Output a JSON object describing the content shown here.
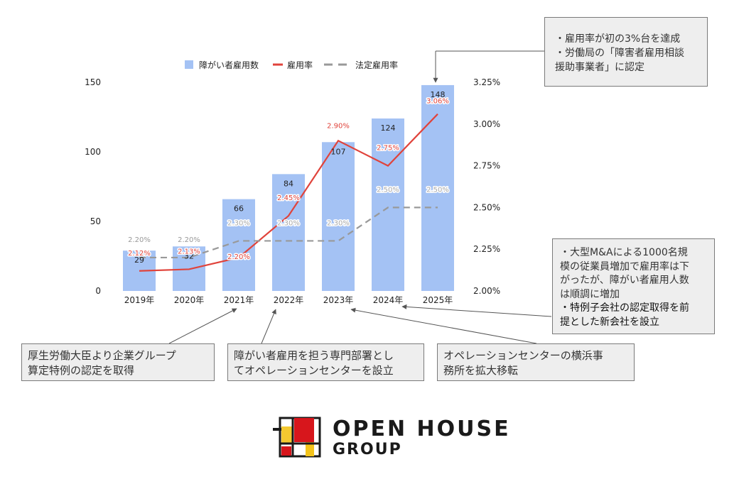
{
  "chart_data": {
    "type": "bar+line",
    "categories": [
      "2019年",
      "2020年",
      "2021年",
      "2022年",
      "2023年",
      "2024年",
      "2025年"
    ],
    "bar_series": {
      "name": "障がい者雇用数",
      "values": [
        29,
        32,
        66,
        84,
        107,
        124,
        148
      ],
      "color": "#a4c2f4"
    },
    "line_series": [
      {
        "name": "雇用率",
        "values": [
          2.12,
          2.13,
          2.2,
          2.45,
          2.9,
          2.75,
          3.06
        ],
        "labels": [
          "2.12%",
          "2.13%",
          "2.20%",
          "2.45%",
          "2.90%",
          "2.75%",
          "3.06%"
        ],
        "color": "#e0433b",
        "style": "solid"
      },
      {
        "name": "法定雇用率",
        "values": [
          2.2,
          2.2,
          2.3,
          2.3,
          2.3,
          2.5,
          2.5
        ],
        "labels": [
          "2.20%",
          "2.20%",
          "2.30%",
          "2.30%",
          "2.30%",
          "2.50%",
          "2.50%"
        ],
        "color": "#999999",
        "style": "dashed"
      }
    ],
    "y_left": {
      "ticks": [
        "0",
        "50",
        "100",
        "150"
      ],
      "ylim": [
        0,
        150
      ]
    },
    "y_right": {
      "ticks": [
        "2.00%",
        "2.25%",
        "2.50%",
        "2.75%",
        "3.00%",
        "3.25%"
      ],
      "ylim": [
        2.0,
        3.25
      ]
    },
    "legend_placement": "top"
  },
  "annotations": {
    "top_right": [
      "・雇用率が初の3%台を達成",
      "・労働局の「障害者雇用相談",
      "援助事業者」に認定"
    ],
    "mid_right": [
      "・大型M&Aによる1000名規",
      "模の従業員増加で雇用率は下",
      "がったが、障がい者雇用人数",
      "は順調に増加",
      "・特例子会社の認定取得を前",
      "提とした新会社を設立"
    ],
    "bottom_1": [
      "厚生労働大臣より企業グループ",
      "算定特例の認定を取得"
    ],
    "bottom_2": [
      "障がい者雇用を担う専門部署とし",
      "てオペレーションセンターを設立"
    ],
    "bottom_3": [
      "オペレーションセンターの横浜事",
      "務所を拡大移転"
    ]
  },
  "logo": {
    "line1": "OPEN HOUSE",
    "line2": "GROUP",
    "colors": [
      "#d7161c",
      "#f3c31a",
      "#1a1a1a"
    ]
  }
}
